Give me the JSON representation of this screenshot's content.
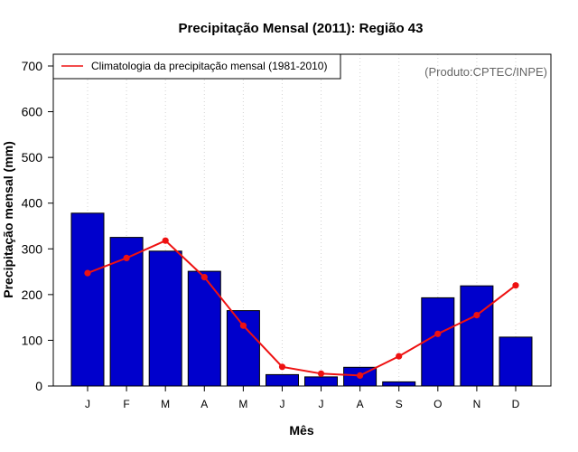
{
  "chart_data": {
    "type": "bar",
    "title": "Precipitação Mensal (2011): Região 43",
    "xlabel": "Mês",
    "ylabel": "Precipitação mensal (mm)",
    "categories": [
      "J",
      "F",
      "M",
      "A",
      "M",
      "J",
      "J",
      "A",
      "S",
      "O",
      "N",
      "D"
    ],
    "ylim": [
      0,
      700
    ],
    "yticks": [
      0,
      100,
      200,
      300,
      400,
      500,
      600,
      700
    ],
    "series": [
      {
        "name": "Precipitação mensal 2011",
        "type": "bar",
        "color": "#0000cc",
        "values": [
          378,
          325,
          295,
          251,
          165,
          25,
          20,
          41,
          9,
          193,
          219,
          107
        ]
      },
      {
        "name": "Climatologia da precipitação mensal (1981-2010)",
        "type": "line",
        "color": "#ee1111",
        "values": [
          247,
          280,
          318,
          238,
          132,
          42,
          27,
          23,
          65,
          114,
          155,
          220
        ]
      }
    ],
    "legend": {
      "position": "top-left",
      "entries": [
        "Climatologia da precipitação mensal (1981-2010)"
      ]
    },
    "credit": "(Produto:CPTEC/INPE)",
    "grid": "vertical dotted"
  }
}
